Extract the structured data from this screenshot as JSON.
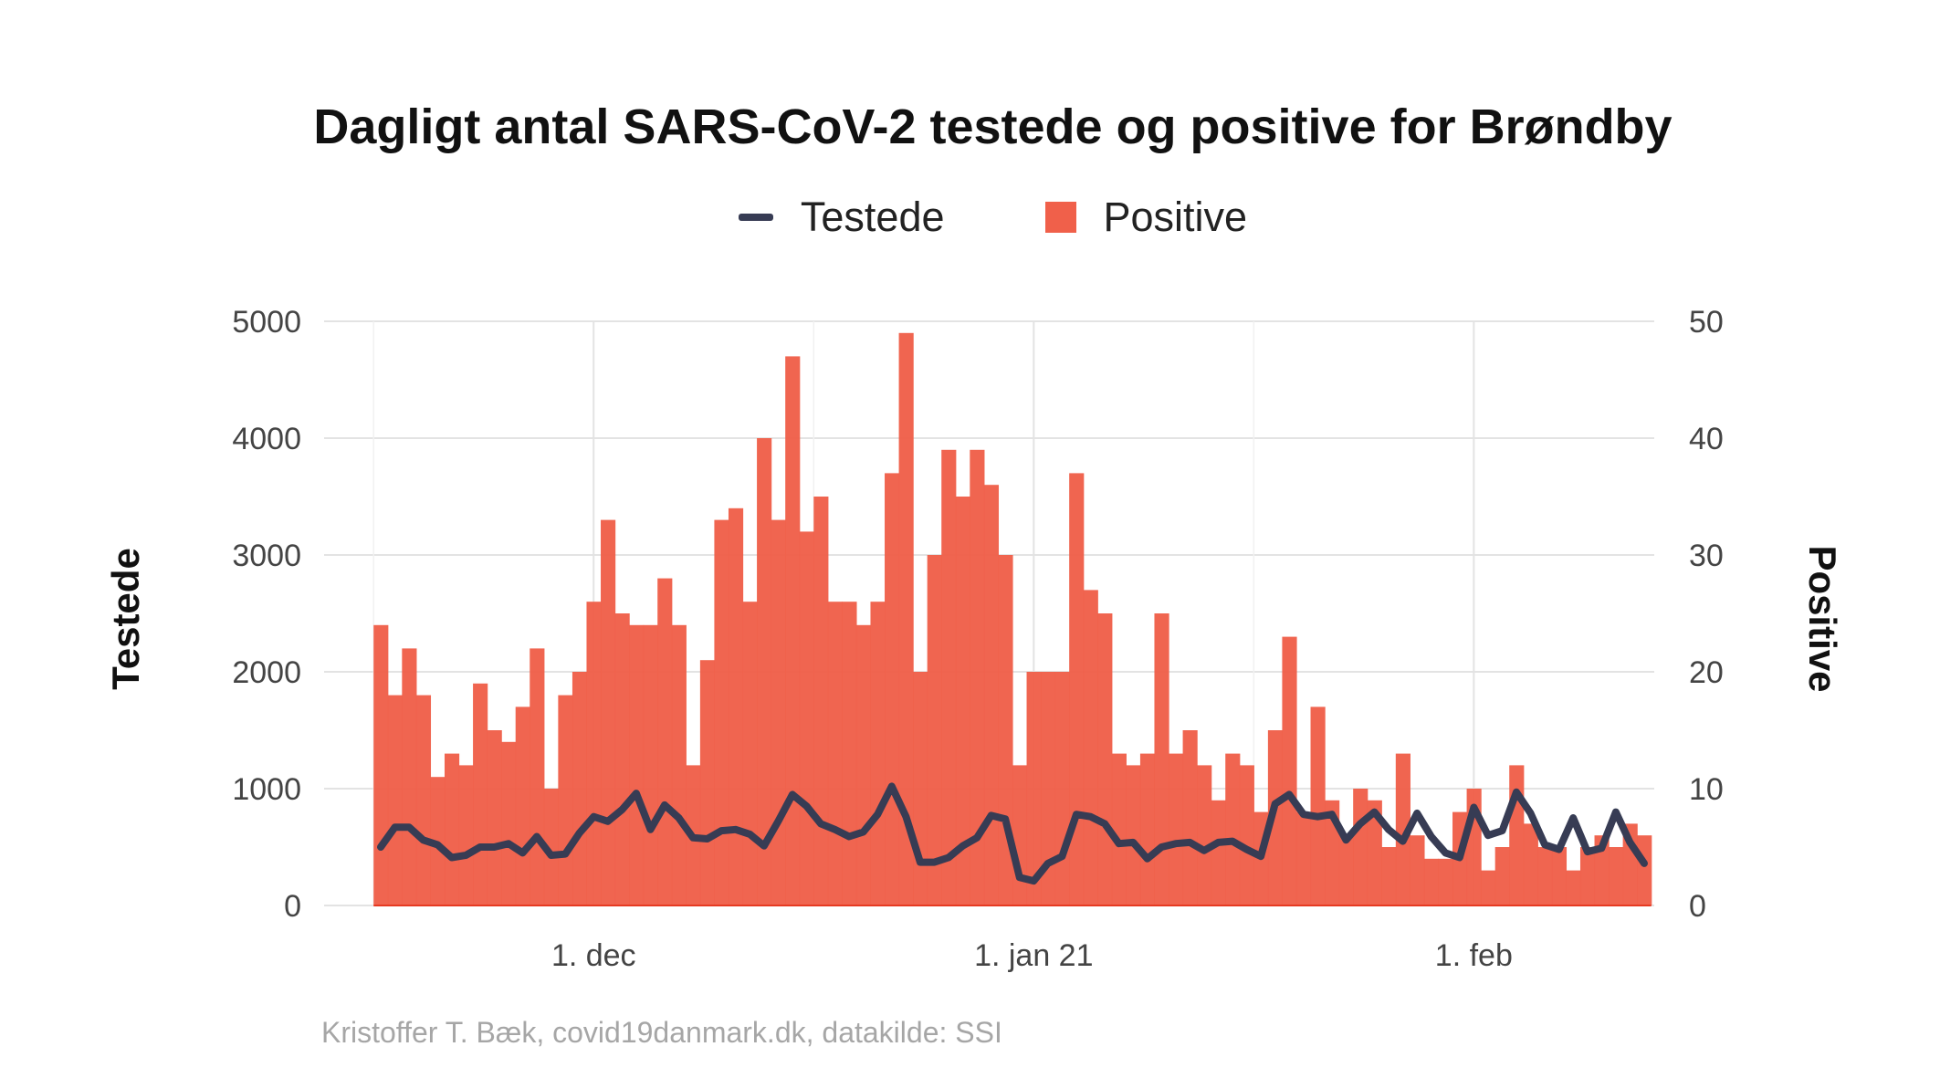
{
  "chart_data": {
    "type": "bar+line",
    "title": "Dagligt antal SARS-CoV-2 testede og positive for Brøndby",
    "ylabel_left": "Testede",
    "ylabel_right": "Positive",
    "ylim_left": [
      0,
      5000
    ],
    "ylim_right": [
      0,
      50
    ],
    "y_ticks_left": [
      "0",
      "1000",
      "2000",
      "3000",
      "4000",
      "5000"
    ],
    "y_ticks_right": [
      "0",
      "10",
      "20",
      "30",
      "40",
      "50"
    ],
    "x_ticks": [
      {
        "label": "1. dec",
        "date": "2020-12-01"
      },
      {
        "label": "1. jan 21",
        "date": "2021-01-01"
      },
      {
        "label": "1. feb",
        "date": "2021-02-01"
      }
    ],
    "grid": true,
    "legend_position": "top",
    "dates_start": "2020-11-16",
    "dates_end": "2021-02-14",
    "series": [
      {
        "name": "Testede",
        "kind": "line",
        "axis": "left",
        "color": "#373c54",
        "values": [
          500,
          670,
          670,
          560,
          520,
          410,
          430,
          500,
          500,
          530,
          450,
          590,
          430,
          440,
          620,
          760,
          720,
          820,
          960,
          650,
          860,
          750,
          580,
          570,
          640,
          650,
          610,
          510,
          720,
          950,
          850,
          700,
          650,
          590,
          630,
          780,
          1020,
          760,
          370,
          370,
          410,
          510,
          580,
          770,
          740,
          240,
          210,
          360,
          420,
          780,
          760,
          700,
          530,
          540,
          400,
          500,
          530,
          540,
          470,
          540,
          550,
          480,
          420,
          870,
          950,
          780,
          760,
          780,
          560,
          700,
          800,
          650,
          550,
          790,
          590,
          450,
          410,
          840,
          600,
          640,
          970,
          790,
          520,
          480,
          750,
          460,
          490,
          800,
          540,
          360
        ]
      },
      {
        "name": "Positive",
        "kind": "bar",
        "axis": "right",
        "color": "#f0604a",
        "values": [
          24,
          18,
          22,
          18,
          11,
          13,
          12,
          19,
          15,
          14,
          17,
          22,
          10,
          18,
          20,
          26,
          33,
          25,
          24,
          24,
          28,
          24,
          12,
          21,
          33,
          34,
          26,
          40,
          33,
          47,
          32,
          35,
          26,
          26,
          24,
          26,
          37,
          49,
          20,
          30,
          39,
          35,
          39,
          36,
          30,
          12,
          20,
          20,
          20,
          37,
          27,
          25,
          13,
          12,
          13,
          25,
          13,
          15,
          12,
          9,
          13,
          12,
          8,
          15,
          23,
          8,
          17,
          9,
          6,
          10,
          9,
          5,
          13,
          6,
          4,
          4,
          8,
          10,
          3,
          5,
          12,
          7,
          5,
          5,
          3,
          5,
          6,
          5,
          7,
          6
        ]
      }
    ]
  },
  "caption": "Kristoffer T. Bæk, covid19danmark.dk, datakilde: SSI"
}
